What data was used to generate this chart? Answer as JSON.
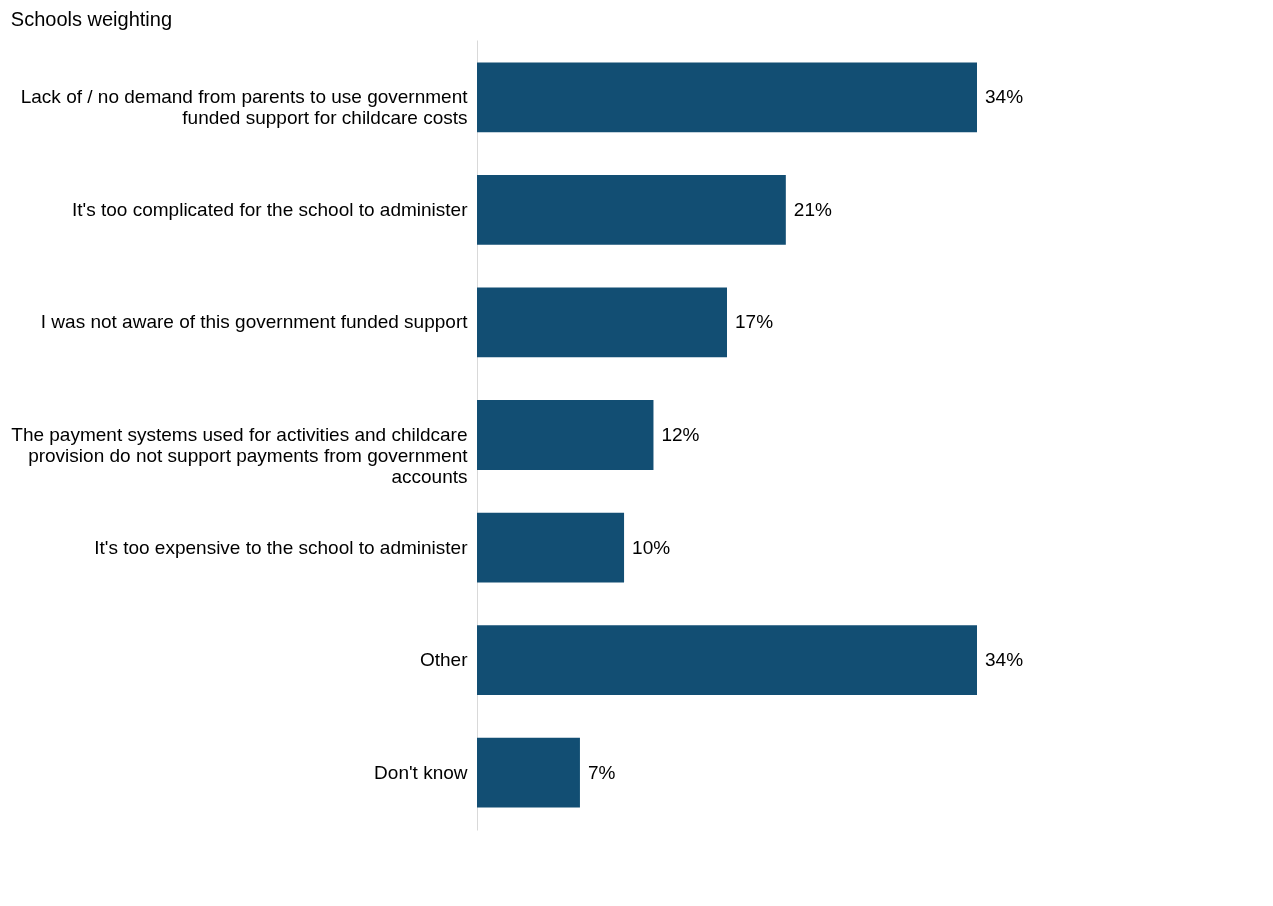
{
  "chart_data": {
    "type": "bar",
    "orientation": "horizontal",
    "title": "Schools weighting",
    "categories": [
      "Lack of / no demand from parents to use government funded support for childcare costs",
      "It's too complicated for the school to administer",
      "I was not aware of this government funded support",
      "The payment systems used for activities and childcare provision do not support payments from government accounts",
      "It's too expensive to the school to administer",
      "Other",
      "Don't know"
    ],
    "values": [
      34,
      21,
      17,
      12,
      10,
      34,
      7
    ],
    "value_labels": [
      "34%",
      "21%",
      "17%",
      "12%",
      "10%",
      "34%",
      "7%"
    ],
    "color": "#124e73",
    "grid": false
  }
}
